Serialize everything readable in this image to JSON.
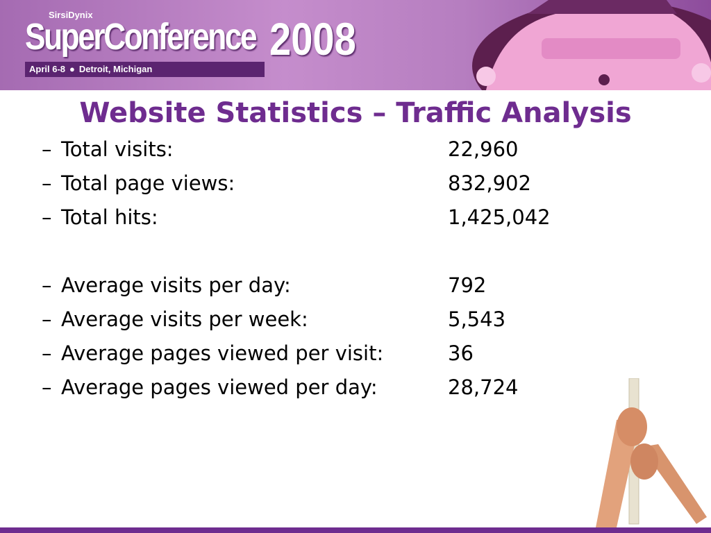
{
  "header": {
    "brand": "SirsiDynix",
    "event": "SuperConference",
    "year": "2008",
    "dates": "April 6-8",
    "location": "Detroit, Michigan"
  },
  "title": "Website Statistics – Traffic Analysis",
  "bullet": "–",
  "groups": [
    [
      {
        "label": "Total visits:",
        "value": "22,960"
      },
      {
        "label": "Total page views:",
        "value": "832,902"
      },
      {
        "label": "Total hits:",
        "value": "1,425,042"
      }
    ],
    [
      {
        "label": "Average visits per day:",
        "value": "792"
      },
      {
        "label": "Average visits per week:",
        "value": "5,543"
      },
      {
        "label": "Average pages viewed per visit:",
        "value": "36"
      },
      {
        "label": "Average pages viewed per day:",
        "value": "28,724"
      }
    ]
  ]
}
